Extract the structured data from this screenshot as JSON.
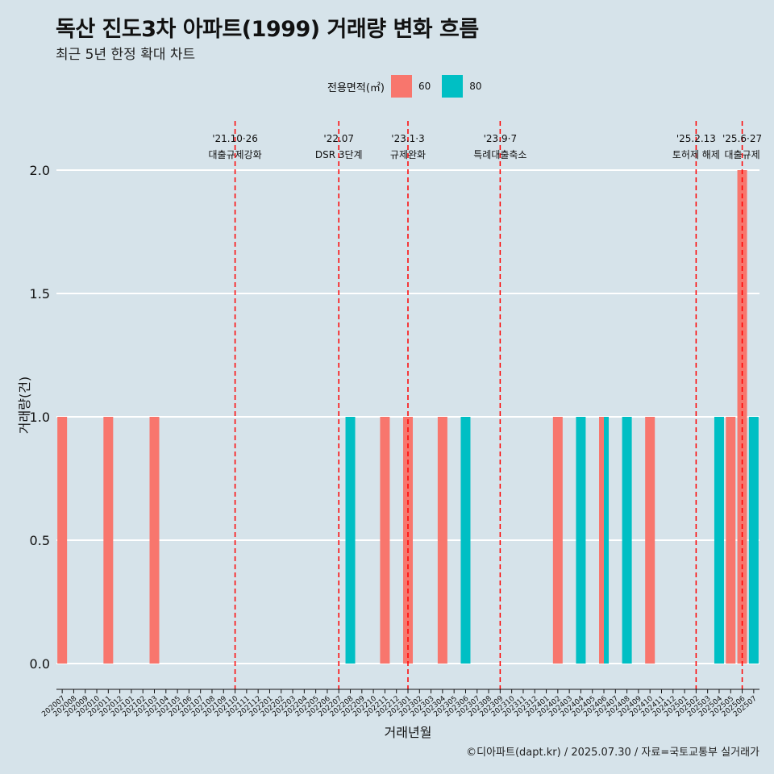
{
  "title": "독산 진도3차 아파트(1999) 거래량 변화 흐름",
  "subtitle": "최근 5년 한정 확대 차트",
  "caption": "©디아파트(dapt.kr) / 2025.07.30 / 자료=국토교통부 실거래가",
  "legend": {
    "title": "전용면적(㎡)",
    "items": [
      {
        "label": "60",
        "color": "#f8766d"
      },
      {
        "label": "80",
        "color": "#00bfc4"
      }
    ]
  },
  "chart_data": {
    "type": "bar",
    "xlabel": "거래년월",
    "ylabel": "거래량(건)",
    "ylim": [
      0,
      2
    ],
    "yticks": [
      "0.0",
      "0.5",
      "1.0",
      "1.5",
      "2.0"
    ],
    "categories": [
      "202007",
      "202008",
      "202009",
      "202010",
      "202011",
      "202012",
      "202101",
      "202102",
      "202103",
      "202104",
      "202105",
      "202106",
      "202107",
      "202108",
      "202109",
      "202110",
      "202111",
      "202112",
      "202201",
      "202202",
      "202203",
      "202204",
      "202205",
      "202206",
      "202207",
      "202208",
      "202209",
      "202210",
      "202211",
      "202212",
      "202301",
      "202302",
      "202303",
      "202304",
      "202305",
      "202306",
      "202307",
      "202308",
      "202309",
      "202310",
      "202311",
      "202312",
      "202401",
      "202402",
      "202403",
      "202404",
      "202405",
      "202406",
      "202407",
      "202408",
      "202409",
      "202410",
      "202411",
      "202412",
      "202501",
      "202502",
      "202503",
      "202504",
      "202505",
      "202506",
      "202507"
    ],
    "series": [
      {
        "name": "60",
        "color": "#f8766d",
        "values": [
          1,
          0,
          0,
          0,
          1,
          0,
          0,
          0,
          1,
          0,
          0,
          0,
          0,
          0,
          0,
          0,
          0,
          0,
          0,
          0,
          0,
          0,
          0,
          0,
          0,
          0,
          0,
          0,
          1,
          0,
          1,
          0,
          0,
          1,
          0,
          0,
          0,
          0,
          0,
          0,
          0,
          0,
          0,
          1,
          0,
          0,
          0,
          1,
          0,
          0,
          0,
          1,
          0,
          0,
          0,
          0,
          0,
          0,
          1,
          2,
          0
        ]
      },
      {
        "name": "80",
        "color": "#00bfc4",
        "values": [
          0,
          0,
          0,
          0,
          0,
          0,
          0,
          0,
          0,
          0,
          0,
          0,
          0,
          0,
          0,
          0,
          0,
          0,
          0,
          0,
          0,
          0,
          0,
          0,
          0,
          1,
          0,
          0,
          0,
          0,
          0,
          0,
          0,
          0,
          0,
          1,
          0,
          0,
          0,
          0,
          0,
          0,
          0,
          0,
          0,
          1,
          0,
          1,
          0,
          1,
          0,
          0,
          0,
          0,
          0,
          0,
          0,
          1,
          0,
          0,
          1
        ]
      }
    ],
    "annotations": [
      {
        "x": "202110",
        "date": "'21.10·26",
        "label": "대출규제강화"
      },
      {
        "x": "202207",
        "date": "'22.07",
        "label": "DSR 3단계"
      },
      {
        "x": "202301",
        "date": "'23.1·3",
        "label": "규제완화"
      },
      {
        "x": "202309",
        "date": "'23.9·7",
        "label": "특례대출축소"
      },
      {
        "x": "202502",
        "date": "'25.2.13",
        "label": "토허제 해제"
      },
      {
        "x": "202506",
        "date": "'25.6·27",
        "label": "대출규제"
      }
    ]
  }
}
